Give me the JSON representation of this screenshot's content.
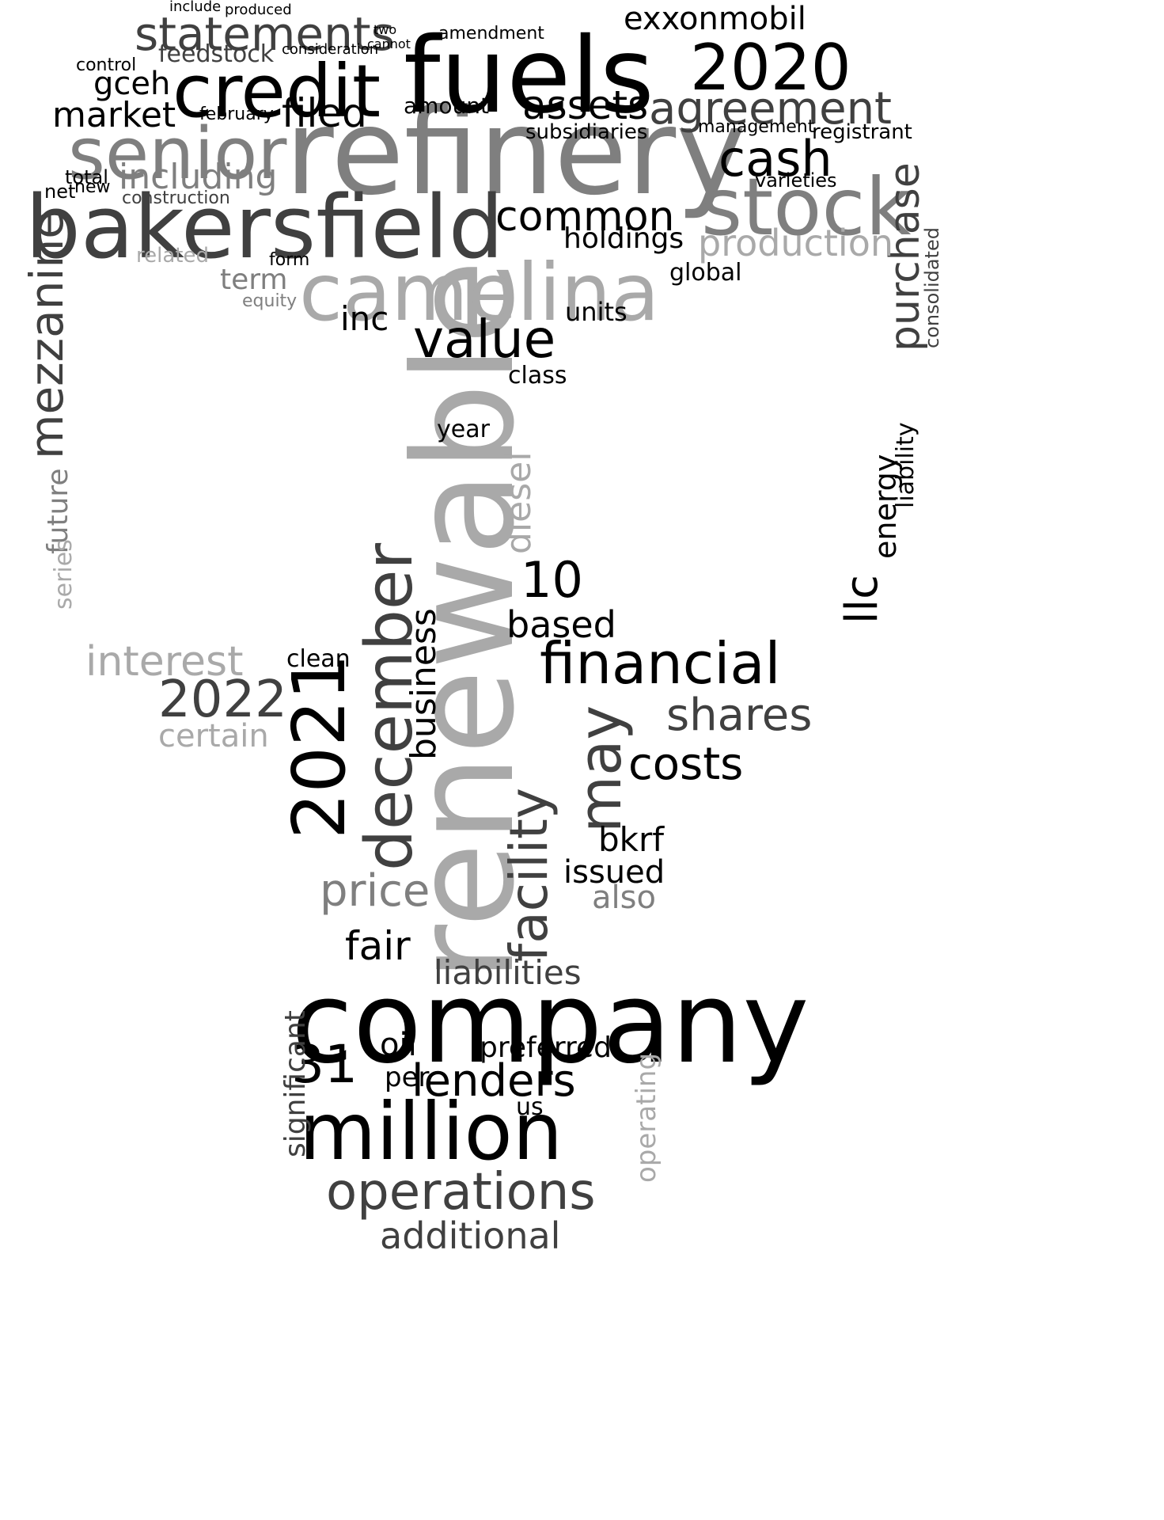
{
  "colors": {
    "black": "#000000",
    "dark": "#404040",
    "mid": "#7f7f7f",
    "light": "#b0b0b0"
  },
  "words": [
    "renewable",
    "company",
    "refinery",
    "camelina",
    "fuels",
    "bakersfield",
    "credit",
    "senior",
    "stock",
    "million",
    "2020",
    "2021",
    "december",
    "agreement",
    "statements",
    "financial",
    "operations",
    "value",
    "facility",
    "lenders",
    "may",
    "31",
    "cash",
    "mezzanine",
    "purchase",
    "production",
    "common",
    "assets",
    "2022",
    "interest",
    "costs",
    "shares",
    "diesel",
    "price",
    "fair",
    "liabilities",
    "additional",
    "business",
    "filed",
    "market",
    "exxonmobil",
    "including",
    "holdings",
    "energy",
    "llc",
    "10",
    "gceh",
    "feedstock",
    "based",
    "bkrf",
    "certain",
    "issued",
    "significant",
    "preferred",
    "operating",
    "also",
    "inc",
    "term",
    "liability",
    "consolidated",
    "future",
    "series",
    "related",
    "clean",
    "units",
    "amount",
    "global",
    "class",
    "year",
    "oil",
    "per",
    "us",
    "subsidiaries",
    "registrant",
    "management",
    "varieties",
    "construction",
    "equity",
    "form",
    "total",
    "net",
    "new",
    "control",
    "february",
    "amendment",
    "consideration",
    "produced",
    "include",
    "two",
    "cannot"
  ]
}
